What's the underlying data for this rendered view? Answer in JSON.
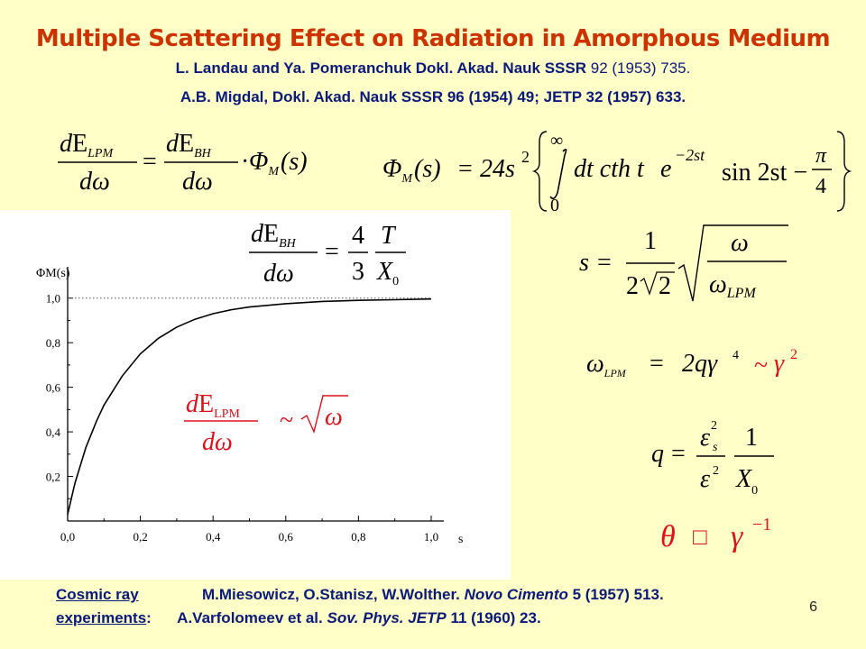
{
  "slide": {
    "title": "Multiple Scattering Effect on Radiation in Amorphous Medium",
    "ref1_authors": "L. Landau and Ya. Pomeranchuk Dokl. Akad. Nauk SSSR",
    "ref1_tail": " 92 (1953) 735.",
    "ref2": "A.B. Migdal, Dokl. Akad. Nauk SSSR 96 (1954) 49;  JETP 32 (1957) 633.",
    "page_number": "6"
  },
  "formulas": {
    "d": "d",
    "E": "E",
    "dw": "dω",
    "LPM": "LPM",
    "BH": "BH",
    "LPM_roman": "LPM",
    "Phi": "Φ",
    "M": "M",
    "s_arg": "(s)",
    "eq": "=",
    "dot": "·",
    "phi_rhs_coeff": "24s",
    "two": "2",
    "infinity": "∞",
    "zero": "0",
    "integral_body": "dt cth t",
    "exp_base": "e",
    "exp_power": "−2st",
    "sin_part": "sin 2st −",
    "pi": "π",
    "four": "4",
    "three": "3",
    "T": "T",
    "X0": "X",
    "sub0": "0",
    "s_var": "s",
    "one": "1",
    "omega": "ω",
    "omega_lpm_rhs": "2qγ",
    "tilde": "~",
    "gamma": "γ",
    "q_var": "q",
    "eps": "ε",
    "sub_s": "s",
    "theta": "θ",
    "minus_one": "−1",
    "sqrt_omega": "ω",
    "box_glyph": "□"
  },
  "chart_data": {
    "type": "line",
    "title": "",
    "xlabel": "s",
    "ylabel": "ΦM(s)",
    "xlim": [
      0.0,
      1.0
    ],
    "ylim": [
      0.0,
      1.1
    ],
    "xticks": [
      "0,0",
      "0,2",
      "0,4",
      "0,6",
      "0,8",
      "1,0"
    ],
    "yticks": [
      "0,2",
      "0,4",
      "0,6",
      "0,8",
      "1,0"
    ],
    "reference_line": {
      "y": 1.0,
      "style": "dotted"
    },
    "series": [
      {
        "name": "",
        "x": [
          0.0,
          0.02,
          0.05,
          0.08,
          0.1,
          0.15,
          0.2,
          0.25,
          0.3,
          0.35,
          0.4,
          0.45,
          0.5,
          0.6,
          0.7,
          0.8,
          0.9,
          1.0
        ],
        "y": [
          0.03,
          0.17,
          0.33,
          0.45,
          0.52,
          0.65,
          0.75,
          0.82,
          0.87,
          0.905,
          0.93,
          0.948,
          0.96,
          0.975,
          0.985,
          0.99,
          0.993,
          0.996
        ]
      }
    ]
  },
  "footer": {
    "label1": "Cosmic ray",
    "label2": "experiments",
    "colon": ":",
    "line1_authors": "M.Miesowicz, O.Stanisz, W.Wolther.",
    "line1_journal": "Novo Cimento",
    "line1_tail": "  5 (1957) 513.",
    "line2_authors": "A.Varfolomeev et al.",
    "line2_journal": "Sov. Phys. JETP",
    "line2_tail": " 11 (1960) 23."
  },
  "colors": {
    "background": "#ffffc8",
    "title": "#cc3300",
    "text_blue": "#0a1a7a",
    "formula_red": "#e0101a",
    "formula_black": "#000000"
  }
}
